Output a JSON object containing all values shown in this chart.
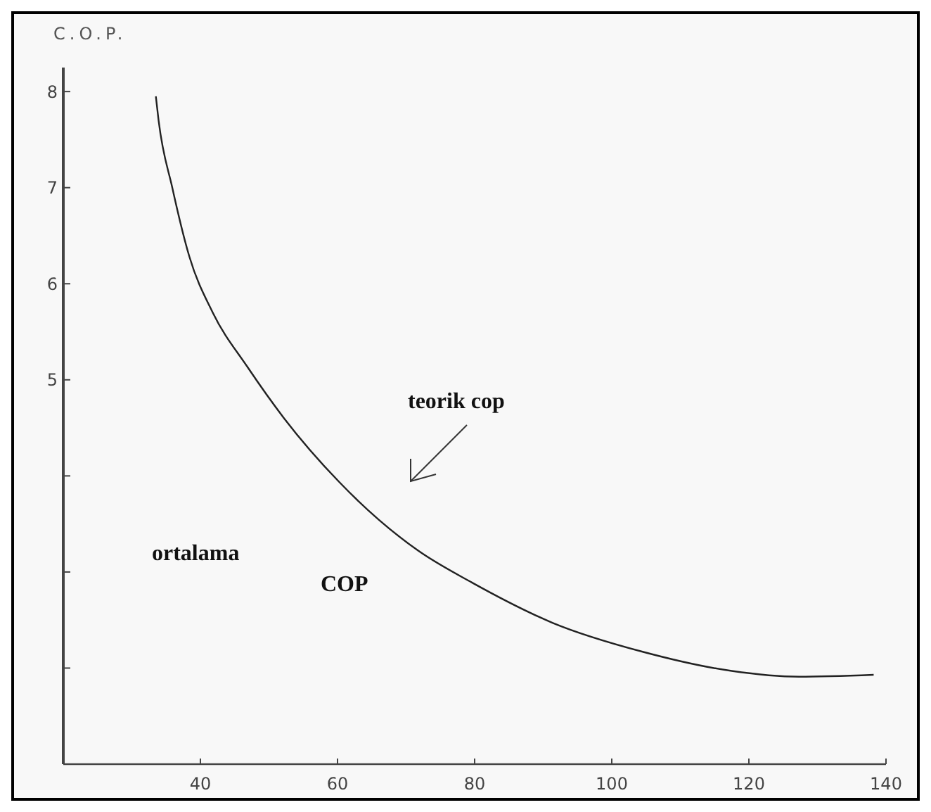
{
  "chart_data": {
    "type": "line",
    "ylabel": "C.O.P.",
    "x": [
      33.5,
      33.9,
      35.9,
      38.4,
      41.8,
      46.9,
      52.2,
      60.2,
      71.8,
      79.6,
      91.4,
      104.5,
      117.5,
      127.3,
      138.2
    ],
    "series": [
      {
        "color": "#222222",
        "values": [
          7.95,
          7.7,
          7.0,
          6.28,
          5.7,
          5.13,
          4.6,
          3.94,
          3.22,
          2.89,
          2.47,
          2.17,
          1.97,
          1.91,
          1.93
        ]
      }
    ],
    "xlim": [
      20,
      140
    ],
    "ylim": [
      1,
      8.25
    ],
    "xticks": [
      40,
      60,
      80,
      100,
      120,
      140
    ],
    "yticks": [
      {
        "value": 2,
        "label": null
      },
      {
        "value": 3,
        "label": null
      },
      {
        "value": 4,
        "label": null
      },
      5,
      6,
      7,
      8
    ],
    "annotations": [
      "teorik cop",
      "ortalama",
      "COP"
    ],
    "grid": false,
    "marker": "none",
    "line_style": "solid"
  }
}
